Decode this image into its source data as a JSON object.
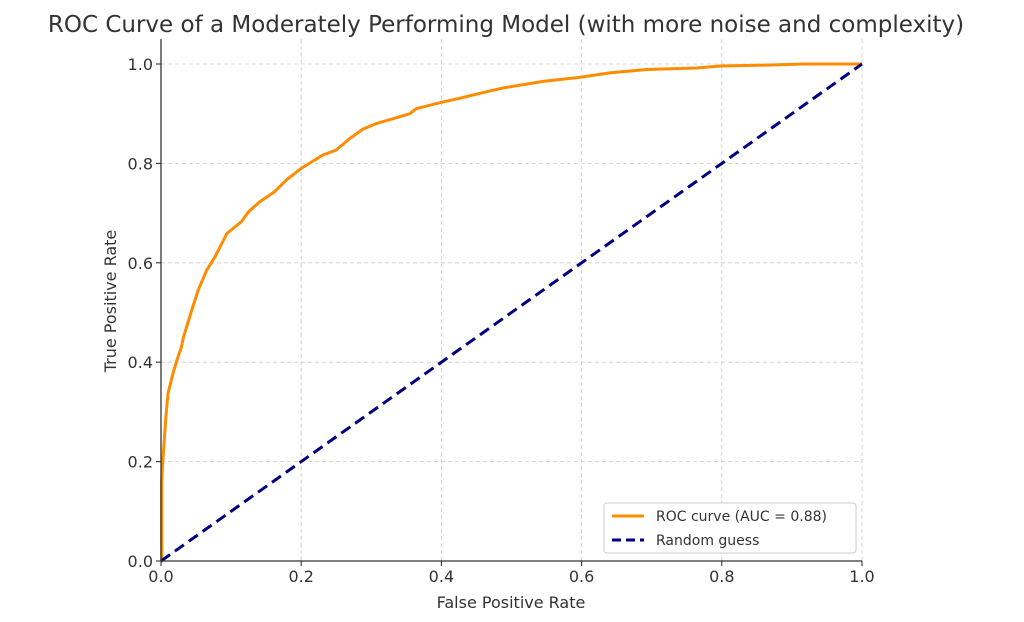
{
  "chart_data": {
    "type": "line",
    "title": "ROC Curve of a Moderately Performing Model (with more noise and complexity)",
    "xlabel": "False Positive Rate",
    "ylabel": "True Positive Rate",
    "xlim": [
      0.0,
      1.0
    ],
    "ylim": [
      0.0,
      1.05
    ],
    "xticks": [
      "0.0",
      "0.2",
      "0.4",
      "0.6",
      "0.8",
      "1.0"
    ],
    "yticks": [
      "0.0",
      "0.2",
      "0.4",
      "0.6",
      "0.8",
      "1.0"
    ],
    "grid": true,
    "legend_position": "lower-right",
    "series": [
      {
        "name": "ROC curve (AUC = 0.88)",
        "color": "#ff8c00",
        "style": "solid",
        "x": [
          0.0,
          0.001,
          0.001,
          0.003,
          0.005,
          0.007,
          0.01,
          0.017,
          0.023,
          0.029,
          0.032,
          0.044,
          0.053,
          0.065,
          0.077,
          0.094,
          0.115,
          0.125,
          0.141,
          0.162,
          0.179,
          0.2,
          0.231,
          0.25,
          0.269,
          0.288,
          0.307,
          0.331,
          0.355,
          0.364,
          0.4,
          0.426,
          0.452,
          0.488,
          0.545,
          0.597,
          0.64,
          0.693,
          0.764,
          0.798,
          0.869,
          0.916,
          1.0
        ],
        "y": [
          0.0,
          0.0,
          0.163,
          0.21,
          0.25,
          0.29,
          0.337,
          0.377,
          0.405,
          0.43,
          0.45,
          0.505,
          0.545,
          0.585,
          0.612,
          0.659,
          0.683,
          0.703,
          0.723,
          0.743,
          0.767,
          0.79,
          0.817,
          0.827,
          0.85,
          0.869,
          0.88,
          0.89,
          0.9,
          0.91,
          0.923,
          0.931,
          0.94,
          0.952,
          0.965,
          0.973,
          0.982,
          0.989,
          0.992,
          0.996,
          0.998,
          1.0,
          1.0
        ]
      },
      {
        "name": "Random guess",
        "color": "#000080",
        "style": "dashed",
        "x": [
          0.0,
          1.0
        ],
        "y": [
          0.0,
          1.0
        ]
      }
    ]
  }
}
